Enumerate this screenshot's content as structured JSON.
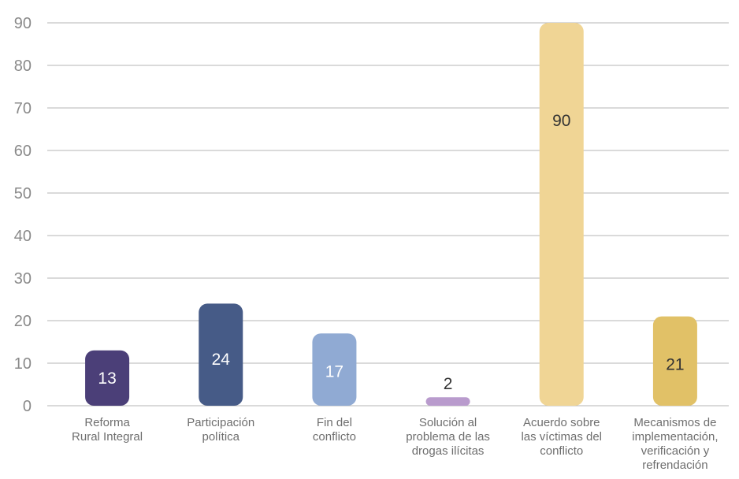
{
  "chart_data": {
    "type": "bar",
    "title": "",
    "xlabel": "",
    "ylabel": "",
    "ylim": [
      0,
      90
    ],
    "yticks": [
      0,
      10,
      20,
      30,
      40,
      50,
      60,
      70,
      80,
      90
    ],
    "grid": true,
    "legend": "none",
    "categories": [
      [
        "Reforma",
        "Rural Integral"
      ],
      [
        "Participación",
        "política"
      ],
      [
        "Fin del",
        "conflicto"
      ],
      [
        "Solución al",
        "problema de las",
        "drogas ilícitas"
      ],
      [
        "Acuerdo sobre",
        "las víctimas del",
        "conflicto"
      ],
      [
        "Mecanismos de",
        "implementación,",
        "verificación y",
        "refrendación"
      ]
    ],
    "values": [
      13,
      24,
      17,
      2,
      90,
      21
    ],
    "data_labels": [
      "13",
      "24",
      "17",
      "2",
      "90",
      "21"
    ],
    "colors": [
      "#4b3f78",
      "#465b87",
      "#90aad3",
      "#b99bcd",
      "#f0d595",
      "#e1c167"
    ],
    "label_colors": [
      "#ffffff",
      "#ffffff",
      "#ffffff",
      "#333333",
      "#333333",
      "#333333"
    ],
    "first_category_label_color": "#6b5fa8"
  }
}
